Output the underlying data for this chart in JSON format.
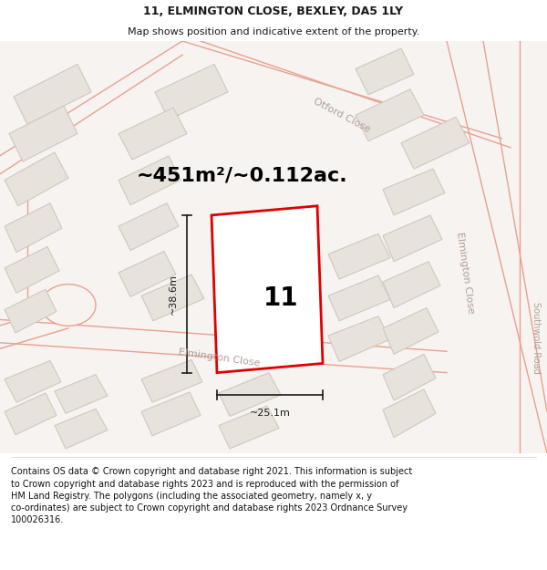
{
  "title_line1": "11, ELMINGTON CLOSE, BEXLEY, DA5 1LY",
  "title_line2": "Map shows position and indicative extent of the property.",
  "area_text": "~451m²/~0.112ac.",
  "property_number": "11",
  "dim_width": "~25.1m",
  "dim_height": "~38.6m",
  "footer_text": "Contains OS data © Crown copyright and database right 2021. This information is subject to Crown copyright and database rights 2023 and is reproduced with the permission of HM Land Registry. The polygons (including the associated geometry, namely x, y co-ordinates) are subject to Crown copyright and database rights 2023 Ordnance Survey 100026316.",
  "fig_width": 6.0,
  "fig_height": 6.25,
  "dpi": 100,
  "bg_color": "#ffffff",
  "map_bg": "#f7f3f0",
  "road_stroke": "#e8a090",
  "road_fill": "#f7f3f0",
  "building_fill": "#e8e2dc",
  "building_stroke": "#d0c8c0",
  "prop_fill": "#ffffff",
  "prop_stroke": "#e00000",
  "prop_lw": 2.0,
  "dim_color": "#1a1a1a",
  "label_color": "#b0a098",
  "text_color": "#1a1a1a",
  "footer_color": "#111111",
  "title_fs": 9,
  "subtitle_fs": 8,
  "area_fs": 16,
  "prop_num_fs": 20,
  "dim_fs": 8,
  "label_fs": 8,
  "footer_fs": 7
}
